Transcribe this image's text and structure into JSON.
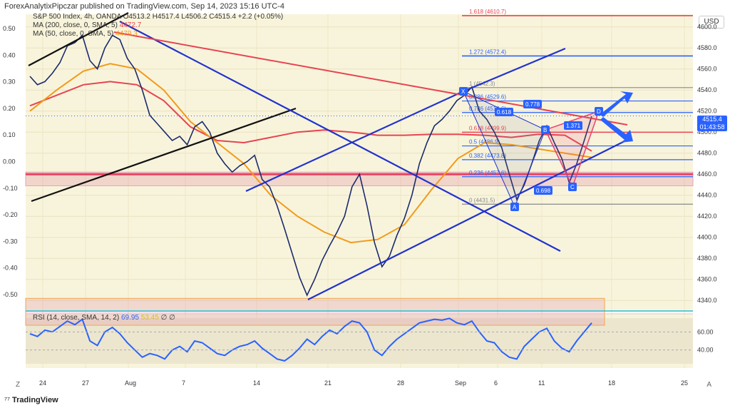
{
  "header": {
    "published": "ForexAnalytixPipczar published on TradingView.com, Sep 14, 2023 15:16 UTC-4"
  },
  "currency": "USD",
  "legend": {
    "symbol": "S&P 500 Index, 4h, OANDA",
    "ohlc": "O4513.2  H4517.4  L4506.2  C4515.4  +2.2 (+0.05%)",
    "ma200": "MA (200, close, 0, SMA, 5)",
    "ma200_value": "4472.7",
    "ma50": "MA (50, close, 0, SMA, 5)",
    "ma50_value": "4479.3",
    "rsi": "RSI (14, close, SMA, 14, 2)",
    "rsi_value": "69.95",
    "rsi_ma_value": "53.45",
    "rsi_extra": "∅ ∅"
  },
  "price_tag": {
    "price": "4515.4",
    "time": "01:43:58"
  },
  "branding": "TradingView",
  "corners": {
    "left": "Z",
    "right": "A"
  },
  "chart_data": {
    "type": "line",
    "title": "S&P 500 Index, 4h, OANDA",
    "y_right_ticks": [
      "4600.0",
      "4580.0",
      "4560.0",
      "4540.0",
      "4520.0",
      "4500.0",
      "4480.0",
      "4460.0",
      "4440.0",
      "4420.0",
      "4400.0",
      "4380.0",
      "4360.0",
      "4340.0"
    ],
    "y_left_ticks": [
      "0.50",
      "0.40",
      "0.30",
      "0.20",
      "0.10",
      "0.00",
      "-0.10",
      "-0.20",
      "-0.30",
      "-0.40",
      "-0.50"
    ],
    "x_ticks": [
      "24",
      "27",
      "Aug",
      "7",
      "14",
      "21",
      "28",
      "Sep",
      "6",
      "11",
      "18",
      "25"
    ],
    "ylim": [
      4330,
      4612
    ],
    "grid": true,
    "series": [
      {
        "name": "S&P 500 Index",
        "color": "#1b2a6b",
        "x": [
          0,
          3,
          6,
          9,
          12,
          15,
          18,
          21,
          24,
          27,
          30,
          33,
          36,
          39,
          42,
          45,
          48,
          51,
          54,
          57,
          60,
          63,
          66,
          69,
          72,
          75,
          78,
          81,
          84,
          87,
          90,
          93,
          96,
          99,
          102,
          105,
          108,
          111,
          114,
          117,
          120,
          123,
          126,
          129,
          132,
          135,
          138,
          141,
          144,
          147,
          150,
          153,
          156,
          159,
          162,
          165,
          168,
          171,
          174,
          177,
          180,
          183,
          186,
          189,
          192,
          195,
          198,
          201,
          204,
          207,
          210,
          213,
          216,
          219,
          222,
          225
        ],
        "y": [
          4553,
          4545,
          4548,
          4556,
          4566,
          4582,
          4585,
          4592,
          4568,
          4560,
          4580,
          4592,
          4588,
          4570,
          4560,
          4540,
          4516,
          4508,
          4500,
          4492,
          4496,
          4488,
          4505,
          4510,
          4500,
          4480,
          4470,
          4462,
          4468,
          4472,
          4478,
          4455,
          4448,
          4430,
          4408,
          4385,
          4362,
          4345,
          4360,
          4378,
          4392,
          4405,
          4420,
          4448,
          4460,
          4430,
          4395,
          4372,
          4382,
          4402,
          4418,
          4440,
          4470,
          4490,
          4506,
          4512,
          4520,
          4530,
          4535,
          4543,
          4520,
          4512,
          4500,
          4485,
          4460,
          4436,
          4450,
          4470,
          4492,
          4506,
          4490,
          4475,
          4452,
          4470,
          4492,
          4515
        ]
      },
      {
        "name": "MA (50)",
        "color": "#f29b1a"
      },
      {
        "name": "MA (200)",
        "color": "#e84350"
      }
    ],
    "fibonacci": [
      {
        "label": "1.618 (4610.7)",
        "value": 4610.7
      },
      {
        "label": "1.272 (4572.4)",
        "value": 4572.4
      },
      {
        "label": "1 (4542.3)",
        "value": 4542.3
      },
      {
        "label": "0.886 (4529.6)",
        "value": 4529.6
      },
      {
        "label": "0.786 (4518.6)",
        "value": 4518.6
      },
      {
        "label": "0.618 (4499.9)",
        "value": 4499.9
      },
      {
        "label": "0.5 (4486.9)",
        "value": 4486.9
      },
      {
        "label": "0.382 (4473.8)",
        "value": 4473.8
      },
      {
        "label": "0.236 (4457.6)",
        "value": 4457.6
      },
      {
        "label": "0 (4431.5)",
        "value": 4431.5
      }
    ],
    "pattern_points": [
      {
        "label": "X",
        "price": 4542.3
      },
      {
        "label": "A",
        "price": 4431.5
      },
      {
        "label": "B",
        "price": 4505
      },
      {
        "label": "C",
        "price": 4450
      },
      {
        "label": "D",
        "price": 4520
      }
    ],
    "pattern_ratios": [
      "0.778",
      "0.618",
      "1.371",
      "0.698"
    ],
    "rsi": {
      "ticks": [
        "60.00",
        "40.00"
      ],
      "values": [
        58,
        55,
        62,
        60,
        66,
        72,
        68,
        74,
        50,
        45,
        60,
        65,
        58,
        48,
        40,
        32,
        36,
        34,
        30,
        40,
        44,
        38,
        50,
        48,
        42,
        36,
        34,
        40,
        44,
        46,
        50,
        42,
        36,
        30,
        28,
        34,
        42,
        52,
        46,
        55,
        62,
        58,
        66,
        72,
        70,
        60,
        40,
        34,
        44,
        52,
        58,
        64,
        70,
        72,
        74,
        73,
        75,
        70,
        68,
        72,
        60,
        50,
        48,
        38,
        32,
        30,
        44,
        52,
        60,
        64,
        50,
        42,
        38,
        50,
        60,
        70
      ]
    }
  }
}
